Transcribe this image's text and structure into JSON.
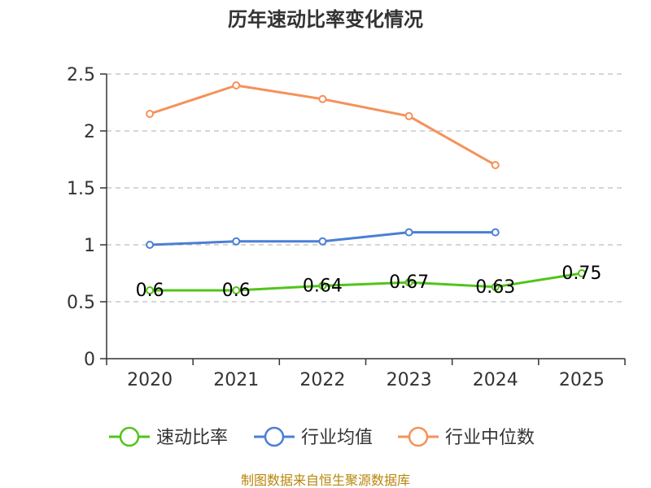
{
  "chart_data": {
    "type": "line",
    "title": "历年速动比率变化情况",
    "categories": [
      "2020",
      "2021",
      "2022",
      "2023",
      "2024",
      "2025"
    ],
    "ylim": [
      0,
      2.5
    ],
    "yticks": [
      "0",
      "0.5",
      "1",
      "1.5",
      "2",
      "2.5"
    ],
    "grid": true,
    "legend_position": "bottom",
    "series": [
      {
        "name": "速动比率",
        "color": "#52c41a",
        "values": [
          0.6,
          0.6,
          0.64,
          0.67,
          0.63,
          0.75
        ],
        "labels": [
          "0.6",
          "0.6",
          "0.64",
          "0.67",
          "0.63",
          "0.75"
        ]
      },
      {
        "name": "行业均值",
        "color": "#4a7fd6",
        "values": [
          1.0,
          1.03,
          1.03,
          1.11,
          1.11,
          null
        ]
      },
      {
        "name": "行业中位数",
        "color": "#f5915a",
        "values": [
          2.15,
          2.4,
          2.28,
          2.13,
          1.7,
          null
        ]
      }
    ],
    "source": "制图数据来自恒生聚源数据库"
  }
}
